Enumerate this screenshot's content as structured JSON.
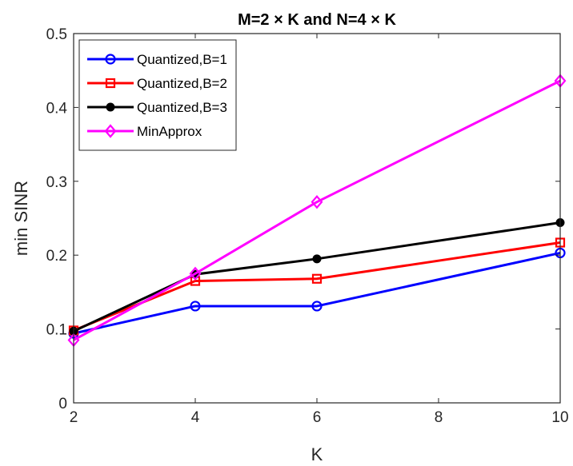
{
  "chart_data": {
    "type": "line",
    "title": "M=2 × K and N=4 × K",
    "xlabel": "K",
    "ylabel": "min SINR",
    "xlim": [
      2,
      10
    ],
    "ylim": [
      0,
      0.5
    ],
    "xticks": [
      2,
      4,
      6,
      8,
      10
    ],
    "yticks": [
      0,
      0.1,
      0.2,
      0.3,
      0.4,
      0.5
    ],
    "ytick_labels": [
      "0",
      "0.1",
      "0.2",
      "0.3",
      "0.4",
      "0.5"
    ],
    "x": [
      2,
      4,
      6,
      10
    ],
    "grid": false,
    "legend_position": "top-left",
    "series": [
      {
        "name": "Quantized,B=1",
        "color": "#0000ff",
        "marker": "circle",
        "values": [
          0.094,
          0.131,
          0.131,
          0.203
        ]
      },
      {
        "name": "Quantized,B=2",
        "color": "#ff0000",
        "marker": "square",
        "values": [
          0.098,
          0.165,
          0.168,
          0.217
        ]
      },
      {
        "name": "Quantized,B=3",
        "color": "#000000",
        "marker": "dot",
        "values": [
          0.097,
          0.174,
          0.195,
          0.244
        ]
      },
      {
        "name": "MinApprox",
        "color": "#ff00ff",
        "marker": "diamond",
        "values": [
          0.085,
          0.175,
          0.272,
          0.436
        ]
      }
    ]
  }
}
